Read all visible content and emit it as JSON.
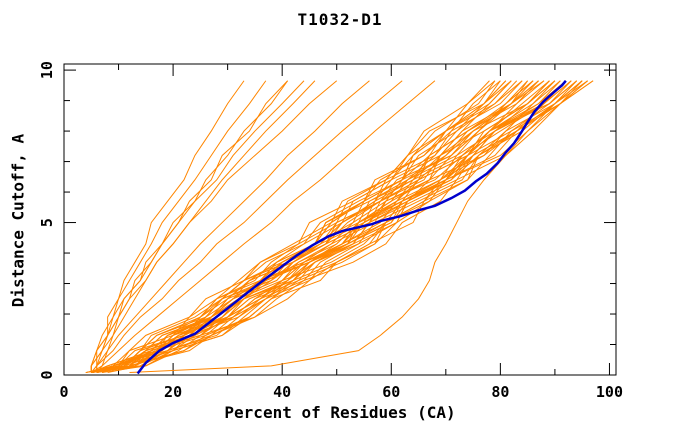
{
  "page": {
    "background": "#ffffff"
  },
  "chart_data": {
    "type": "line",
    "title": "T1032-D1",
    "xlabel": "Percent of Residues (CA)",
    "ylabel": "Distance Cutoff, A",
    "xlim": [
      0,
      101.2
    ],
    "ylim": [
      0,
      10.2
    ],
    "x_major_ticks": [
      0,
      20,
      40,
      60,
      80,
      100
    ],
    "x_minor_ticks": [
      10,
      30,
      50,
      70,
      90
    ],
    "y_major_ticks": [
      0,
      5,
      10
    ],
    "y_minor_ticks": [
      1,
      2,
      3,
      4,
      6,
      7,
      8,
      9
    ],
    "grid": false,
    "legend": "none",
    "colors": {
      "model_lines": "#ff8600",
      "highlight_line": "#0000cc",
      "axis": "#000000",
      "text": "#000000"
    },
    "y_levels": [
      0.08,
      0.3,
      0.8,
      1.3,
      1.9,
      2.5,
      3.1,
      3.7,
      4.3,
      5.0,
      5.7,
      6.4,
      7.2,
      8.0,
      8.9,
      9.65
    ],
    "model_curves": [
      [
        5,
        11,
        14,
        22,
        25,
        28,
        35,
        38,
        43,
        50,
        52,
        59,
        63,
        66,
        74,
        78
      ],
      [
        5,
        9,
        17,
        20,
        26,
        29,
        33,
        41,
        46,
        49,
        55,
        58,
        66,
        71,
        75,
        80
      ],
      [
        6,
        13,
        16,
        19,
        27,
        32,
        36,
        40,
        46,
        48,
        55,
        62,
        64,
        70,
        77,
        80
      ],
      [
        5,
        11,
        15,
        23,
        26,
        29,
        37,
        40,
        46,
        53,
        55,
        62,
        67,
        70,
        79,
        83
      ],
      [
        5,
        9,
        18,
        21,
        27,
        30,
        34,
        42,
        48,
        51,
        57,
        60,
        69,
        73,
        78,
        82
      ],
      [
        5,
        14,
        19,
        23,
        32,
        37,
        41,
        45,
        51,
        54,
        60,
        67,
        69,
        75,
        82,
        85
      ],
      [
        5,
        11,
        15,
        23,
        27,
        31,
        39,
        42,
        47,
        55,
        57,
        64,
        69,
        73,
        82,
        86
      ],
      [
        4,
        9,
        18,
        21,
        28,
        32,
        36,
        44,
        49,
        53,
        59,
        62,
        71,
        76,
        81,
        86
      ],
      [
        5,
        11,
        14,
        17,
        25,
        30,
        34,
        39,
        46,
        48,
        56,
        64,
        67,
        74,
        82,
        87
      ],
      [
        5,
        11,
        16,
        24,
        28,
        32,
        40,
        43,
        49,
        57,
        59,
        67,
        71,
        75,
        85,
        89
      ],
      [
        5,
        9,
        19,
        22,
        29,
        33,
        37,
        45,
        51,
        55,
        61,
        65,
        74,
        78,
        84,
        89
      ],
      [
        5,
        13,
        17,
        20,
        30,
        36,
        40,
        44,
        52,
        54,
        62,
        70,
        73,
        80,
        88,
        92
      ],
      [
        5,
        12,
        16,
        25,
        29,
        33,
        41,
        44,
        51,
        58,
        61,
        69,
        74,
        78,
        87,
        92
      ],
      [
        5,
        12,
        22,
        27,
        34,
        38,
        43,
        51,
        57,
        61,
        67,
        70,
        79,
        83,
        88,
        93
      ],
      [
        5,
        13,
        17,
        21,
        31,
        37,
        41,
        46,
        53,
        56,
        64,
        72,
        75,
        83,
        90,
        95
      ],
      [
        5,
        12,
        16,
        25,
        30,
        34,
        42,
        46,
        52,
        60,
        63,
        71,
        76,
        81,
        90,
        95
      ],
      [
        5,
        10,
        20,
        24,
        31,
        35,
        40,
        49,
        55,
        59,
        66,
        70,
        80,
        85,
        91,
        97
      ],
      [
        5,
        10,
        13,
        22,
        26,
        29,
        38,
        42,
        48,
        56,
        59,
        68,
        73,
        78,
        89,
        94
      ],
      [
        7,
        10,
        17,
        19,
        27,
        31,
        34,
        42,
        48,
        52,
        58,
        63,
        70,
        75,
        82,
        87
      ],
      [
        6,
        13,
        18,
        21,
        30,
        36,
        40,
        44,
        52,
        54,
        62,
        69,
        72,
        79,
        87,
        91
      ],
      [
        5,
        11,
        15,
        23,
        27,
        30,
        38,
        41,
        46,
        54,
        56,
        63,
        68,
        71,
        80,
        84
      ],
      [
        5,
        12,
        15,
        18,
        27,
        32,
        36,
        39,
        46,
        48,
        55,
        62,
        64,
        70,
        77,
        81
      ],
      [
        5,
        9,
        18,
        22,
        29,
        32,
        36,
        45,
        51,
        54,
        61,
        64,
        73,
        78,
        83,
        88
      ],
      [
        5,
        13,
        19,
        28,
        32,
        36,
        44,
        47,
        53,
        61,
        63,
        70,
        74,
        78,
        86,
        90
      ],
      [
        5,
        13,
        17,
        21,
        31,
        37,
        42,
        46,
        54,
        57,
        65,
        73,
        76,
        83,
        91,
        96
      ],
      [
        4,
        11,
        14,
        22,
        25,
        28,
        36,
        39,
        44,
        51,
        53,
        60,
        64,
        68,
        76,
        79
      ],
      [
        5,
        9,
        17,
        21,
        27,
        30,
        34,
        42,
        47,
        51,
        57,
        59,
        68,
        72,
        77,
        82
      ],
      [
        5,
        12,
        16,
        19,
        28,
        33,
        37,
        41,
        48,
        50,
        58,
        65,
        67,
        74,
        81,
        85
      ],
      [
        5,
        9,
        19,
        22,
        29,
        33,
        37,
        45,
        52,
        55,
        62,
        65,
        74,
        79,
        85,
        90
      ],
      [
        5,
        12,
        16,
        25,
        29,
        33,
        42,
        45,
        51,
        59,
        62,
        69,
        75,
        79,
        88,
        93
      ],
      [
        5,
        13,
        17,
        21,
        30,
        36,
        41,
        45,
        53,
        56,
        63,
        71,
        74,
        82,
        89,
        94
      ],
      [
        5,
        8,
        17,
        20,
        27,
        31,
        36,
        44,
        51,
        55,
        63,
        67,
        77,
        83,
        90,
        96
      ],
      [
        5,
        11,
        15,
        24,
        27,
        31,
        39,
        42,
        48,
        56,
        58,
        65,
        70,
        74,
        83,
        87
      ],
      [
        5,
        12,
        22,
        26,
        34,
        38,
        42,
        50,
        56,
        59,
        66,
        69,
        77,
        81,
        86,
        91
      ],
      [
        5,
        11,
        14,
        16,
        24,
        29,
        33,
        37,
        44,
        47,
        54,
        62,
        65,
        72,
        79,
        84
      ],
      [
        8,
        14,
        19,
        27,
        31,
        35,
        43,
        46,
        52,
        60,
        62,
        70,
        74,
        78,
        88,
        92
      ],
      [
        7,
        11,
        20,
        23,
        30,
        33,
        37,
        45,
        50,
        54,
        60,
        63,
        72,
        76,
        81,
        86
      ],
      [
        5,
        15,
        21,
        25,
        35,
        41,
        45,
        50,
        57,
        59,
        67,
        74,
        76,
        84,
        90,
        94
      ],
      [
        5,
        9,
        12,
        20,
        23,
        26,
        33,
        36,
        42,
        49,
        51,
        59,
        63,
        67,
        77,
        81
      ],
      [
        5,
        8,
        16,
        19,
        25,
        29,
        33,
        41,
        47,
        51,
        58,
        61,
        71,
        76,
        82,
        88
      ],
      [
        5,
        14,
        20,
        29,
        34,
        38,
        47,
        50,
        56,
        64,
        66,
        74,
        78,
        82,
        91,
        95
      ],
      [
        5,
        9,
        17,
        20,
        26,
        29,
        33,
        40,
        46,
        49,
        55,
        57,
        66,
        70,
        74,
        79
      ],
      [
        5,
        11,
        14,
        17,
        26,
        31,
        36,
        40,
        47,
        50,
        58,
        66,
        69,
        77,
        85,
        90
      ],
      [
        6,
        13,
        17,
        26,
        30,
        34,
        42,
        45,
        52,
        59,
        62,
        70,
        75,
        79,
        89,
        93
      ],
      [
        5,
        12,
        23,
        27,
        35,
        39,
        44,
        53,
        59,
        62,
        69,
        72,
        81,
        86,
        91,
        96
      ],
      [
        4,
        10,
        12,
        15,
        23,
        28,
        32,
        36,
        43,
        45,
        53,
        60,
        63,
        70,
        78,
        82
      ],
      [
        7,
        15,
        20,
        29,
        33,
        37,
        45,
        48,
        54,
        61,
        63,
        70,
        74,
        77,
        85,
        89
      ],
      [
        5,
        11,
        15,
        18,
        27,
        33,
        38,
        43,
        50,
        54,
        62,
        71,
        75,
        83,
        91,
        97
      ],
      [
        5,
        5,
        6,
        8,
        8,
        10,
        11,
        13,
        15,
        16,
        19,
        22,
        24,
        27,
        30,
        33
      ],
      [
        5,
        6,
        6,
        7,
        9,
        10,
        12,
        14,
        16,
        18,
        21,
        24,
        27,
        30,
        34,
        37
      ],
      [
        6,
        6,
        7,
        9,
        10,
        12,
        13,
        16,
        18,
        20,
        24,
        26,
        30,
        33,
        38,
        41
      ],
      [
        5,
        5,
        7,
        8,
        10,
        11,
        14,
        15,
        18,
        21,
        23,
        27,
        29,
        34,
        37,
        41
      ],
      [
        5,
        5,
        6,
        8,
        9,
        11,
        14,
        16,
        18,
        21,
        24,
        28,
        31,
        35,
        40,
        44
      ],
      [
        6,
        6,
        8,
        9,
        11,
        13,
        15,
        17,
        20,
        23,
        26,
        29,
        33,
        37,
        42,
        46
      ],
      [
        5,
        5,
        7,
        8,
        10,
        12,
        15,
        17,
        20,
        23,
        27,
        30,
        35,
        40,
        45,
        50
      ],
      [
        6,
        7,
        8,
        10,
        13,
        16,
        19,
        22,
        25,
        29,
        33,
        37,
        41,
        46,
        51,
        56
      ],
      [
        5,
        6,
        9,
        11,
        14,
        18,
        21,
        25,
        28,
        33,
        37,
        41,
        46,
        51,
        57,
        62
      ],
      [
        5,
        7,
        10,
        13,
        17,
        21,
        25,
        29,
        33,
        38,
        42,
        47,
        52,
        57,
        63,
        68
      ],
      [
        12,
        38,
        54,
        58,
        62,
        65,
        67,
        68,
        70,
        72,
        74,
        77,
        81,
        85,
        90,
        95
      ]
    ],
    "highlight_curve": [
      [
        13.5,
        0.05
      ],
      [
        15,
        0.4
      ],
      [
        17.5,
        0.8
      ],
      [
        20,
        1.05
      ],
      [
        24,
        1.35
      ],
      [
        26.5,
        1.7
      ],
      [
        29,
        2.05
      ],
      [
        31.5,
        2.4
      ],
      [
        34,
        2.75
      ],
      [
        36.5,
        3.1
      ],
      [
        39.5,
        3.5
      ],
      [
        42.5,
        3.9
      ],
      [
        45.5,
        4.25
      ],
      [
        48.5,
        4.55
      ],
      [
        51,
        4.72
      ],
      [
        56.5,
        4.95
      ],
      [
        58,
        5.05
      ],
      [
        61.5,
        5.2
      ],
      [
        65,
        5.4
      ],
      [
        68,
        5.55
      ],
      [
        71,
        5.8
      ],
      [
        73.5,
        6.05
      ],
      [
        75.5,
        6.35
      ],
      [
        77.5,
        6.6
      ],
      [
        79.5,
        6.95
      ],
      [
        81,
        7.3
      ],
      [
        82.5,
        7.6
      ],
      [
        83.8,
        7.95
      ],
      [
        85,
        8.3
      ],
      [
        86.3,
        8.65
      ],
      [
        87.8,
        8.95
      ],
      [
        89,
        9.15
      ],
      [
        90.3,
        9.35
      ],
      [
        91.3,
        9.5
      ],
      [
        92,
        9.65
      ]
    ]
  }
}
